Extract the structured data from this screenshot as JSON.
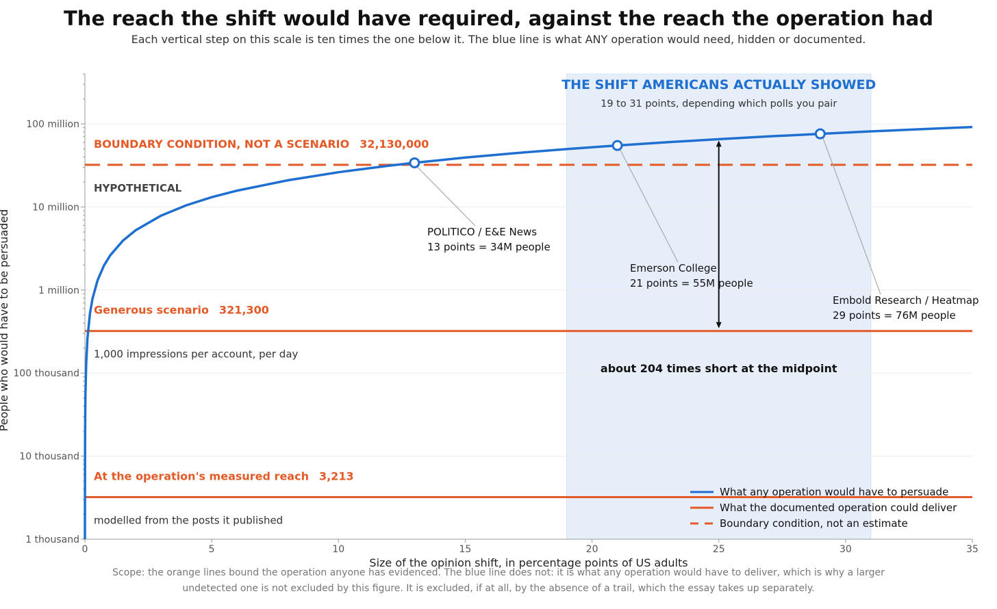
{
  "title": "The reach the shift would have required, against the reach the operation had",
  "subtitle": "Each vertical step on this scale is ten times the one below it. The blue line is what ANY operation would need, hidden or documented.",
  "footnote": "Scope: the orange lines bound the operation anyone has evidenced. The blue line does not: it is what any operation would have to deliver, which is why a larger undetected one is not excluded by this figure. It is excluded, if at all, by the absence of a trail, which the essay takes up separately.",
  "colors": {
    "blue": "#1f6fd1",
    "orange": "#e35a27",
    "band": "#e6eef9",
    "dark": "#333333",
    "grid": "#ececec"
  },
  "chart_data": {
    "type": "line",
    "xlabel": "Size of the opinion shift, in percentage points of US adults",
    "ylabel": "People who would have to be persuaded",
    "xlim": [
      0,
      35
    ],
    "ylim": [
      1000,
      400000000
    ],
    "yscale": "log",
    "grid": "horizontal",
    "legend_position": "bottom-right",
    "x_ticks": [
      0,
      5,
      10,
      15,
      20,
      25,
      30,
      35
    ],
    "y_ticks": [
      {
        "value": 1000,
        "label": "1 thousand"
      },
      {
        "value": 10000,
        "label": "10 thousand"
      },
      {
        "value": 100000,
        "label": "100 thousand"
      },
      {
        "value": 1000000,
        "label": "1 million"
      },
      {
        "value": 10000000,
        "label": "10 million"
      },
      {
        "value": 100000000,
        "label": "100 million"
      }
    ],
    "series": [
      {
        "name": "What any operation would have to persuade",
        "style": "solid-blue",
        "x": [
          0,
          0.005,
          0.01,
          0.02,
          0.05,
          0.1,
          0.2,
          0.3,
          0.5,
          0.75,
          1,
          1.5,
          2,
          3,
          4,
          5,
          6,
          8,
          10,
          12,
          13,
          15,
          17,
          19,
          21,
          23,
          25,
          27,
          29,
          31,
          33,
          35
        ],
        "y": [
          1000,
          13100,
          26200,
          52400,
          131000,
          262000,
          524000,
          786000,
          1310000,
          1970000,
          2620000,
          3930000,
          5240000,
          7860000,
          10480000,
          13100000,
          15720000,
          20960000,
          26200000,
          31440000,
          34060000,
          39300000,
          44540000,
          49780000,
          55020000,
          60260000,
          65500000,
          70740000,
          75980000,
          81220000,
          86460000,
          91700000
        ]
      },
      {
        "name": "What the documented operation could deliver",
        "style": "solid-orange",
        "values": [
          3213,
          321300
        ]
      },
      {
        "name": "Boundary condition, not an estimate",
        "style": "dashed-orange",
        "value": 32130000
      }
    ],
    "shaded_band": {
      "x_range": [
        19,
        31
      ],
      "label": "THE SHIFT AMERICANS ACTUALLY SHOWED",
      "sublabel": "19 to 31 points, depending which polls you pair"
    },
    "reference_lines": [
      {
        "y": 32130000,
        "label": "BOUNDARY CONDITION, NOT A SCENARIO",
        "value_label": "32,130,000",
        "sublabel": "HYPOTHETICAL",
        "style": "dashed"
      },
      {
        "y": 321300,
        "label": "Generous scenario",
        "value_label": "321,300",
        "sublabel": "1,000 impressions per account, per day",
        "style": "solid"
      },
      {
        "y": 3213,
        "label": "At the operation's measured reach",
        "value_label": "3,213",
        "sublabel": "modelled from the posts it published",
        "style": "solid"
      }
    ],
    "points": [
      {
        "x": 13,
        "y": 34000000,
        "line1": "POLITICO / E&E News",
        "line2": "13 points = 34M people"
      },
      {
        "x": 21,
        "y": 55000000,
        "line1": "Emerson College",
        "line2": "21 points = 55M people"
      },
      {
        "x": 29,
        "y": 76000000,
        "line1": "Embold Research / Heatmap",
        "line2": "29 points = 76M people"
      }
    ],
    "gap_arrow": {
      "x": 25,
      "y_from": 321300,
      "y_to": 65500000,
      "label": "about 204 times short at the midpoint"
    }
  }
}
